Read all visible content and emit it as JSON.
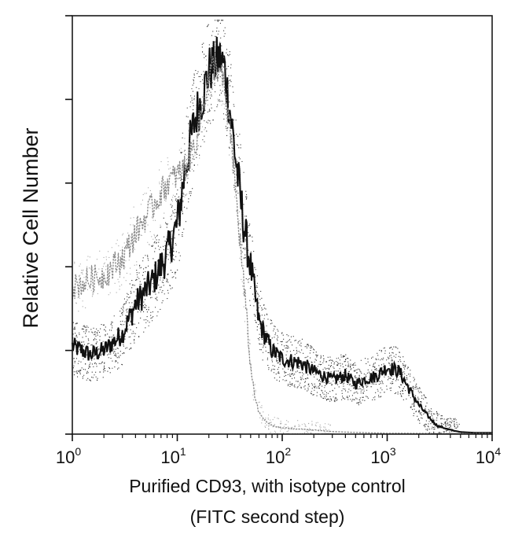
{
  "chart_data": {
    "type": "line",
    "title": "",
    "xlabel": "Purified  CD93, with isotype control",
    "xlabel_line2": "(FITC second step)",
    "ylabel": "Relative Cell Number",
    "x_scale": "log",
    "xlim": [
      1,
      10000
    ],
    "ylim": [
      0,
      100
    ],
    "grid": false,
    "x_tick_labels": [
      {
        "base": "10",
        "exp": "0"
      },
      {
        "base": "10",
        "exp": "1"
      },
      {
        "base": "10",
        "exp": "2"
      },
      {
        "base": "10",
        "exp": "3"
      },
      {
        "base": "10",
        "exp": "4"
      }
    ],
    "y_tick_count": 6,
    "series": [
      {
        "color": "#111111",
        "style": "dense-dotted",
        "x": [
          1,
          1.5,
          2,
          3,
          4,
          6,
          8,
          10,
          12,
          15,
          18,
          20,
          22,
          25,
          28,
          30,
          33,
          36,
          40,
          45,
          50,
          55,
          60,
          70,
          80,
          100,
          150,
          200,
          300,
          400,
          500,
          600,
          800,
          1000,
          1300,
          1600,
          2000,
          2500,
          3000,
          4000,
          5000,
          7000,
          10000
        ],
        "y": [
          21,
          19,
          20,
          24,
          31,
          37,
          43,
          50,
          64,
          76,
          82,
          87,
          88,
          90,
          88,
          82,
          74,
          66,
          56,
          47,
          40,
          33,
          27,
          23,
          20,
          18,
          17,
          15,
          13,
          14,
          12,
          13,
          14,
          16,
          15,
          11,
          7,
          4,
          2,
          1,
          0.5,
          0.3,
          0.3
        ]
      },
      {
        "color": "#8a8a8a",
        "style": "sparse-dotted",
        "x": [
          1,
          1.5,
          2,
          3,
          4,
          6,
          8,
          10,
          12,
          15,
          18,
          20,
          22,
          25,
          28,
          30,
          33,
          36,
          40,
          45,
          50,
          55,
          60,
          70,
          80,
          100,
          150,
          200,
          300,
          500,
          1000,
          10000
        ],
        "y": [
          35,
          37,
          38,
          42,
          48,
          55,
          60,
          62,
          64,
          70,
          80,
          85,
          88,
          87,
          83,
          76,
          70,
          58,
          45,
          30,
          16,
          9,
          5,
          3,
          2,
          1.5,
          1.2,
          1,
          0.6,
          0.4,
          0.2,
          0.1
        ]
      }
    ]
  }
}
